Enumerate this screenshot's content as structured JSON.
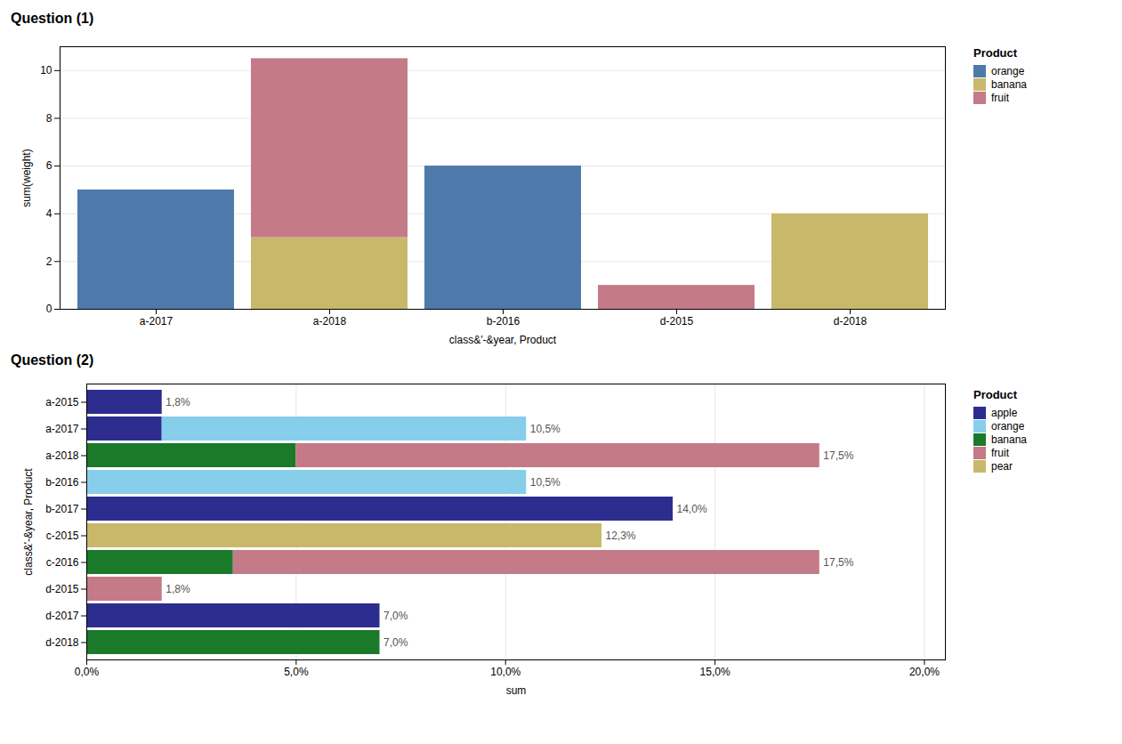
{
  "chart_data": [
    {
      "type": "bar",
      "title": "Question (1)",
      "xlabel": "class&'-&year, Product",
      "ylabel": "sum(weight)",
      "categories": [
        "a-2017",
        "a-2018",
        "b-2016",
        "d-2015",
        "d-2018"
      ],
      "series": [
        {
          "name": "orange",
          "color": "#4e7aab",
          "values": [
            5,
            0,
            6,
            0,
            0
          ]
        },
        {
          "name": "banana",
          "color": "#c8b96a",
          "values": [
            0,
            3,
            0,
            0,
            4
          ]
        },
        {
          "name": "fruit",
          "color": "#c47a87",
          "values": [
            0,
            7.5,
            0,
            1,
            0
          ]
        }
      ],
      "stacked": true,
      "ylim": [
        0,
        11
      ],
      "yticks": [
        0,
        2,
        4,
        6,
        8,
        10
      ],
      "grid": true,
      "legend": "right",
      "legend_title": "Product"
    },
    {
      "type": "bar",
      "orientation": "horizontal",
      "title": "Question (2)",
      "xlabel": "sum",
      "ylabel": "class&'-&year, Product",
      "categories": [
        "a-2015",
        "a-2017",
        "a-2018",
        "b-2016",
        "b-2017",
        "c-2015",
        "c-2016",
        "d-2015",
        "d-2017",
        "d-2018"
      ],
      "series": [
        {
          "name": "apple",
          "color": "#2d2d8f",
          "values": [
            0.018,
            0.018,
            0,
            0,
            0.14,
            0,
            0,
            0,
            0.07,
            0
          ]
        },
        {
          "name": "orange",
          "color": "#87ceeb",
          "values": [
            0,
            0.087,
            0,
            0.105,
            0,
            0,
            0,
            0,
            0,
            0
          ]
        },
        {
          "name": "banana",
          "color": "#1a7a2a",
          "values": [
            0,
            0,
            0.05,
            0,
            0,
            0,
            0.035,
            0,
            0,
            0.07
          ]
        },
        {
          "name": "fruit",
          "color": "#c47a87",
          "values": [
            0,
            0,
            0.125,
            0,
            0,
            0,
            0.14,
            0.018,
            0,
            0
          ]
        },
        {
          "name": "pear",
          "color": "#c8b96a",
          "values": [
            0,
            0,
            0,
            0,
            0,
            0.123,
            0,
            0,
            0,
            0
          ]
        }
      ],
      "totals": [
        0.018,
        0.105,
        0.175,
        0.105,
        0.14,
        0.123,
        0.175,
        0.018,
        0.07,
        0.07
      ],
      "total_labels": [
        "1,8%",
        "10,5%",
        "17,5%",
        "10,5%",
        "14,0%",
        "12,3%",
        "17,5%",
        "1,8%",
        "7,0%",
        "7,0%"
      ],
      "stacked": true,
      "xlim": [
        0,
        0.205
      ],
      "xticks": [
        {
          "value": 0,
          "label": "0,0%"
        },
        {
          "value": 0.05,
          "label": "5,0%"
        },
        {
          "value": 0.1,
          "label": "10,0%"
        },
        {
          "value": 0.15,
          "label": "15,0%"
        },
        {
          "value": 0.2,
          "label": "20,0%"
        }
      ],
      "grid": true,
      "legend": "right",
      "legend_title": "Product"
    }
  ]
}
